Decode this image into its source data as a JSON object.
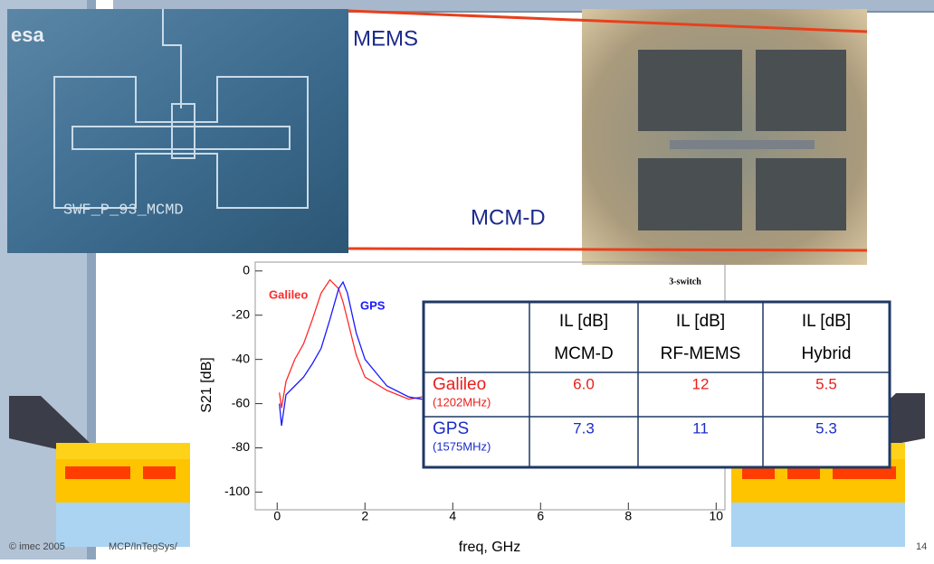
{
  "slide": {
    "logo": "esa",
    "photo_label": "SWF_P_93_MCMD",
    "mems_label": "MEMS",
    "mcmd_label": "MCM-D",
    "footer_left": "© imec 2005",
    "footer_mid": "MCP/InTegSys/",
    "page_number": "14"
  },
  "chart_data": {
    "type": "line",
    "xlabel": "freq, GHz",
    "ylabel": "S21 [dB]",
    "annotation": "3-switch",
    "x": [
      0.05,
      0.1,
      0.2,
      0.4,
      0.6,
      0.8,
      1.0,
      1.2,
      1.4,
      1.5,
      1.6,
      1.8,
      2.0,
      2.5,
      3.0,
      3.3
    ],
    "series": [
      {
        "name": "Galileo",
        "color": "#ff2a2a",
        "values": [
          -55,
          -62,
          -50,
          -40,
          -33,
          -22,
          -10,
          -4,
          -8,
          -14,
          -22,
          -38,
          -48,
          -54,
          -58,
          -57
        ]
      },
      {
        "name": "GPS",
        "color": "#1a1aff",
        "values": [
          -60,
          -70,
          -56,
          -52,
          -48,
          -42,
          -35,
          -22,
          -8,
          -5,
          -10,
          -28,
          -40,
          -52,
          -57,
          -58
        ]
      }
    ],
    "xlim": [
      -0.5,
      10.2
    ],
    "xticks": [
      0,
      2,
      4,
      6,
      8,
      10
    ],
    "ylim": [
      -108,
      4
    ],
    "yticks": [
      0,
      -20,
      -40,
      -60,
      -80,
      -100
    ]
  },
  "table": {
    "columns": [
      {
        "line1": "IL [dB]",
        "line2": "MCM-D"
      },
      {
        "line1": "IL [dB]",
        "line2": "RF-MEMS"
      },
      {
        "line1": "IL [dB]",
        "line2": "Hybrid"
      }
    ],
    "rows": [
      {
        "name": "Galileo",
        "freq": "(1202MHz)",
        "color": "#e8201c",
        "values": [
          "6.0",
          "12",
          "5.5"
        ]
      },
      {
        "name": "GPS",
        "freq": "(1575MHz)",
        "color": "#1c2cc8",
        "values": [
          "7.3",
          "11",
          "5.3"
        ]
      }
    ]
  }
}
